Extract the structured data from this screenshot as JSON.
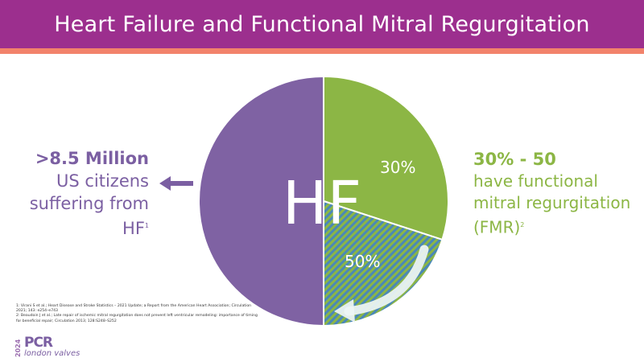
{
  "header": {
    "title": "Heart Failure and Functional Mitral Regurgitation"
  },
  "left": {
    "big": ">8.5 Million",
    "line1": "US citizens",
    "line2": "suffering from",
    "line3": "HF",
    "ref": "1"
  },
  "right": {
    "big": "30% - 50",
    "line1": "have functional",
    "line2": "mitral regurgitation",
    "line3": "(FMR)",
    "ref": "2"
  },
  "chart": {
    "center_label": "HF",
    "label_30": "30%",
    "label_50": "50%"
  },
  "footnotes": {
    "n1": "1: Virani S et al.; Heart Disease and Stroke Statistics – 2021 Update; a Report from the American Heart Association; Circulation 2021; 143: e254–e743",
    "n2": "2: Beaudoin J et al.; Late repair of ischemic mitral regurgitation does not prevent left ventricular remodeling: importance of timing for beneficial repair; Circulation 2013; 128:S248–S252"
  },
  "logo": {
    "year": "2024",
    "name": "PCR",
    "sub": "london valves"
  },
  "colors": {
    "purple": "#7f62a3",
    "green": "#8cb645",
    "blue": "#4a88b8",
    "title_bg": "#9c2f8e",
    "accent": "#f2836b"
  }
}
